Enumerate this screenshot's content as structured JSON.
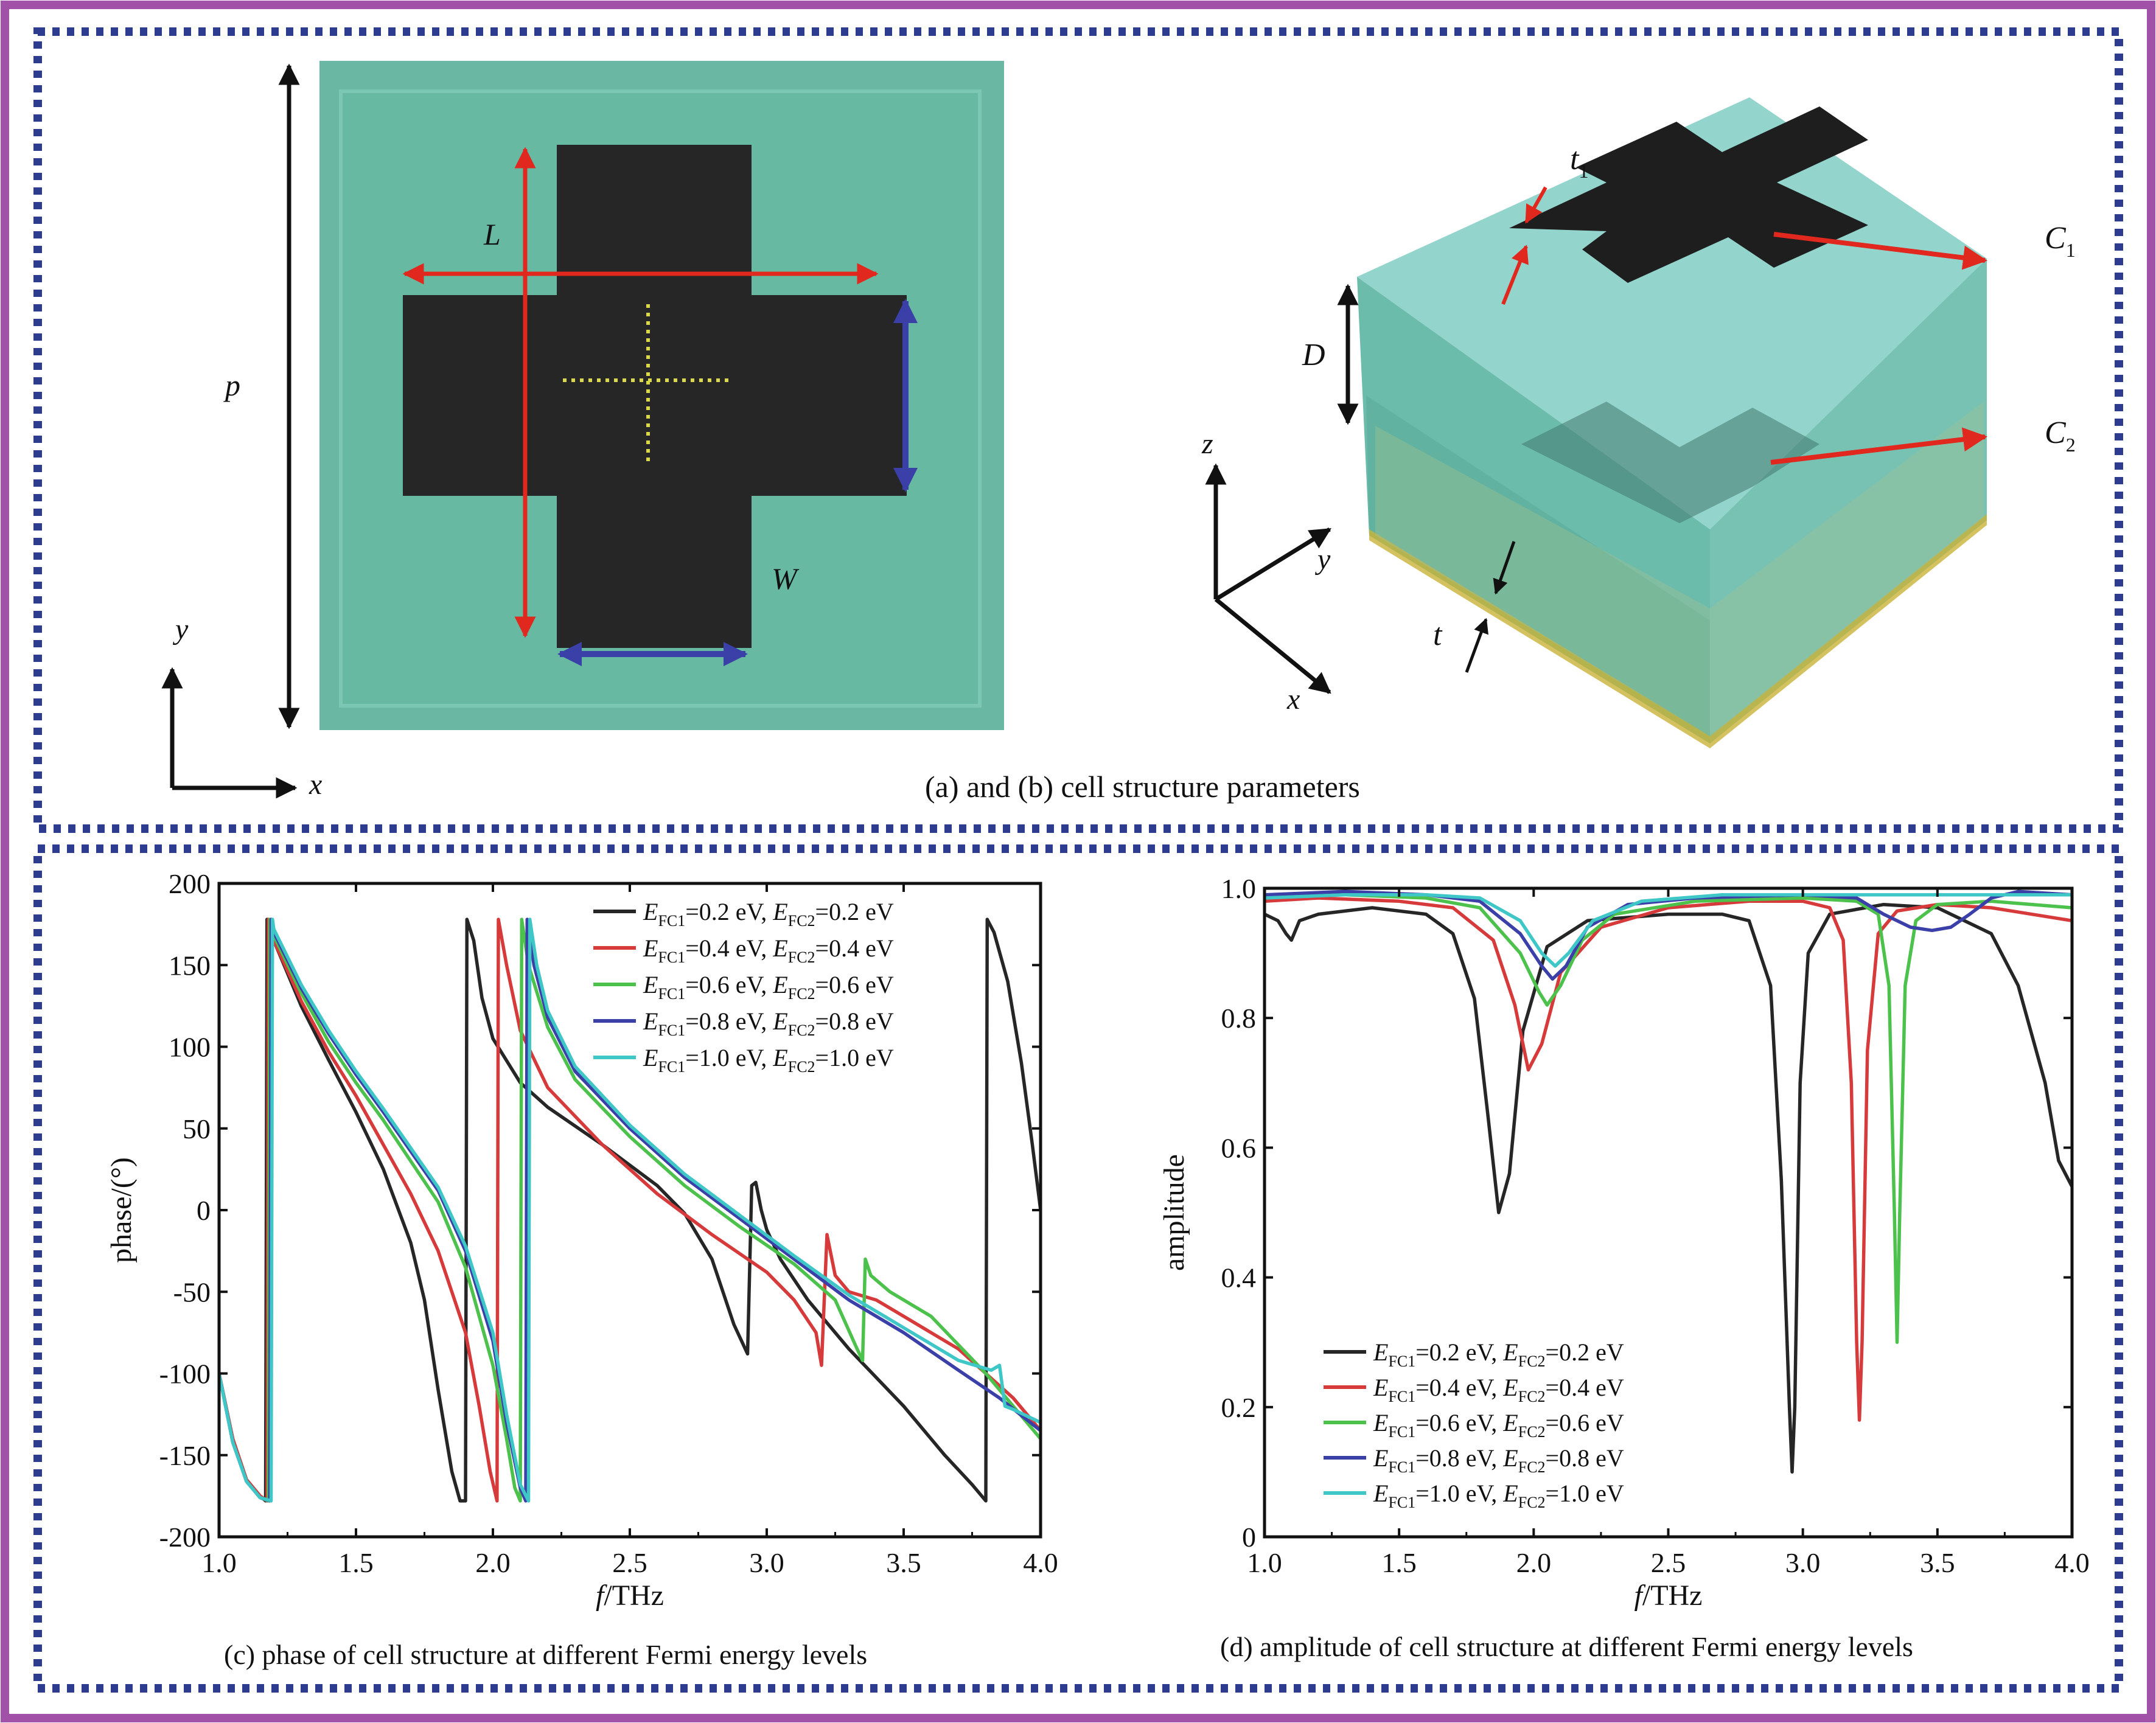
{
  "colors": {
    "outer_frame": "#a251a8",
    "dotted_frame": "#2e3c8f",
    "substrate": "#6ab8a3",
    "metal": "#262626",
    "arrow_red": "#e0281e",
    "arrow_blue": "#3b3fa8",
    "guide_yellow": "#d9d94a"
  },
  "panel_ab": {
    "caption": "(a) and (b) cell structure parameters",
    "a_labels": {
      "L": "L",
      "W": "W",
      "p": "p",
      "x": "x",
      "y": "y"
    },
    "b_labels": {
      "t1": "t",
      "t1_sub": "1",
      "C1": "C",
      "C1_sub": "1",
      "C2": "C",
      "C2_sub": "2",
      "D": "D",
      "t": "t",
      "x": "x",
      "y": "y",
      "z": "z"
    }
  },
  "legend_entries": [
    {
      "e1": "0.2",
      "e2": "0.2"
    },
    {
      "e1": "0.4",
      "e2": "0.4"
    },
    {
      "e1": "0.6",
      "e2": "0.6"
    },
    {
      "e1": "0.8",
      "e2": "0.8"
    },
    {
      "e1": "1.0",
      "e2": "1.0"
    }
  ],
  "legend_format": {
    "E": "E",
    "sub1": "FC1",
    "sub2": "FC2",
    "unit": " eV",
    "eq": "=",
    "sep": ", "
  },
  "chart_data": [
    {
      "id": "c",
      "type": "line",
      "caption": "(c) phase of cell structure at different Fermi energy levels",
      "xlabel_italic": "f",
      "xlabel_rest": "/THz",
      "ylabel": "phase/(°)",
      "xlim": [
        1.0,
        4.0
      ],
      "ylim": [
        -200,
        200
      ],
      "xticks": [
        "1.0",
        "1.5",
        "2.0",
        "2.5",
        "3.0",
        "3.5",
        "4.0"
      ],
      "yticks": [
        "200",
        "150",
        "100",
        "50",
        "0",
        "-50",
        "-100",
        "-150",
        "-200"
      ],
      "legend_placement": "top-right",
      "series": [
        {
          "name": "EFC1=0.2 eV, EFC2=0.2 eV",
          "color": "#262626",
          "x": [
            1.0,
            1.05,
            1.1,
            1.15,
            1.17,
            1.175,
            1.2,
            1.3,
            1.4,
            1.5,
            1.6,
            1.7,
            1.75,
            1.8,
            1.85,
            1.88,
            1.9,
            1.905,
            1.93,
            1.96,
            2.0,
            2.1,
            2.2,
            2.4,
            2.6,
            2.7,
            2.8,
            2.88,
            2.93,
            2.945,
            2.96,
            2.98,
            3.0,
            3.05,
            3.15,
            3.3,
            3.5,
            3.65,
            3.75,
            3.8,
            3.805,
            3.83,
            3.88,
            3.93,
            3.97,
            4.0
          ],
          "y": [
            -100,
            -140,
            -165,
            -175,
            -178,
            178,
            165,
            125,
            92,
            60,
            25,
            -20,
            -55,
            -110,
            -160,
            -178,
            -178,
            178,
            165,
            130,
            105,
            78,
            63,
            40,
            15,
            -2,
            -30,
            -70,
            -88,
            15,
            17,
            0,
            -12,
            -30,
            -55,
            -85,
            -120,
            -150,
            -168,
            -178,
            178,
            170,
            140,
            90,
            40,
            0
          ]
        },
        {
          "name": "EFC1=0.4 eV, EFC2=0.4 eV",
          "color": "#d63a3a",
          "x": [
            1.0,
            1.05,
            1.1,
            1.15,
            1.175,
            1.18,
            1.2,
            1.3,
            1.4,
            1.5,
            1.6,
            1.7,
            1.8,
            1.9,
            1.95,
            1.99,
            2.015,
            2.02,
            2.05,
            2.1,
            2.2,
            2.4,
            2.6,
            2.8,
            3.0,
            3.1,
            3.18,
            3.2,
            3.22,
            3.25,
            3.3,
            3.4,
            3.5,
            3.7,
            3.9,
            4.0
          ],
          "y": [
            -100,
            -140,
            -165,
            -175,
            -178,
            178,
            165,
            128,
            97,
            70,
            40,
            10,
            -25,
            -75,
            -120,
            -160,
            -178,
            178,
            150,
            110,
            75,
            40,
            10,
            -15,
            -38,
            -55,
            -75,
            -95,
            -15,
            -40,
            -50,
            -55,
            -65,
            -85,
            -115,
            -135
          ]
        },
        {
          "name": "EFC1=0.6 eV, EFC2=0.6 eV",
          "color": "#4cc24c",
          "x": [
            1.0,
            1.05,
            1.1,
            1.15,
            1.18,
            1.185,
            1.2,
            1.3,
            1.4,
            1.5,
            1.6,
            1.7,
            1.8,
            1.9,
            2.0,
            2.05,
            2.08,
            2.1,
            2.105,
            2.13,
            2.2,
            2.3,
            2.5,
            2.7,
            2.9,
            3.1,
            3.25,
            3.33,
            3.35,
            3.36,
            3.38,
            3.45,
            3.6,
            3.8,
            4.0
          ],
          "y": [
            -100,
            -142,
            -166,
            -176,
            -178,
            178,
            168,
            133,
            103,
            78,
            55,
            30,
            5,
            -35,
            -95,
            -140,
            -170,
            -178,
            178,
            150,
            112,
            80,
            45,
            15,
            -10,
            -33,
            -55,
            -85,
            -92,
            -30,
            -40,
            -50,
            -65,
            -100,
            -140
          ]
        },
        {
          "name": "EFC1=0.8 eV, EFC2=0.8 eV",
          "color": "#3b3fa8",
          "x": [
            1.0,
            1.05,
            1.1,
            1.15,
            1.185,
            1.19,
            1.2,
            1.3,
            1.4,
            1.5,
            1.6,
            1.7,
            1.8,
            1.9,
            2.0,
            2.05,
            2.1,
            2.12,
            2.125,
            2.15,
            2.2,
            2.3,
            2.5,
            2.7,
            2.9,
            3.1,
            3.3,
            3.5,
            3.7,
            3.85,
            4.0
          ],
          "y": [
            -100,
            -142,
            -166,
            -176,
            -178,
            178,
            170,
            136,
            108,
            83,
            60,
            36,
            12,
            -25,
            -80,
            -130,
            -170,
            -178,
            178,
            150,
            118,
            85,
            50,
            20,
            -5,
            -30,
            -55,
            -75,
            -98,
            -115,
            -135
          ]
        },
        {
          "name": "EFC1=1.0 eV, EFC2=1.0 eV",
          "color": "#3fc7c7",
          "x": [
            1.0,
            1.05,
            1.1,
            1.15,
            1.19,
            1.195,
            1.2,
            1.3,
            1.4,
            1.5,
            1.6,
            1.7,
            1.8,
            1.9,
            2.0,
            2.05,
            2.1,
            2.13,
            2.135,
            2.16,
            2.2,
            2.3,
            2.5,
            2.7,
            2.9,
            3.1,
            3.3,
            3.5,
            3.7,
            3.82,
            3.85,
            3.87,
            3.9,
            4.0
          ],
          "y": [
            -100,
            -142,
            -166,
            -176,
            -178,
            178,
            172,
            138,
            110,
            85,
            62,
            38,
            14,
            -22,
            -75,
            -125,
            -168,
            -178,
            178,
            150,
            122,
            88,
            52,
            22,
            -3,
            -28,
            -52,
            -72,
            -92,
            -98,
            -95,
            -120,
            -122,
            -130
          ]
        }
      ]
    },
    {
      "id": "d",
      "type": "line",
      "caption": "(d) amplitude of cell structure at different Fermi energy levels",
      "xlabel_italic": "f",
      "xlabel_rest": "/THz",
      "ylabel": "amplitude",
      "xlim": [
        1.0,
        4.0
      ],
      "ylim": [
        0,
        1.0
      ],
      "xticks": [
        "1.0",
        "1.5",
        "2.0",
        "2.5",
        "3.0",
        "3.5",
        "4.0"
      ],
      "yticks": [
        "1.0",
        "0.8",
        "0.6",
        "0.4",
        "0.2",
        "0"
      ],
      "legend_placement": "bottom-left",
      "series": [
        {
          "name": "EFC1=0.2 eV, EFC2=0.2 eV",
          "color": "#262626",
          "x": [
            1.0,
            1.05,
            1.08,
            1.1,
            1.13,
            1.2,
            1.4,
            1.6,
            1.7,
            1.78,
            1.83,
            1.87,
            1.91,
            1.96,
            2.05,
            2.2,
            2.5,
            2.7,
            2.8,
            2.88,
            2.92,
            2.95,
            2.96,
            2.97,
            2.99,
            3.02,
            3.1,
            3.3,
            3.5,
            3.7,
            3.8,
            3.9,
            3.95,
            4.0
          ],
          "y": [
            0.96,
            0.95,
            0.93,
            0.92,
            0.95,
            0.96,
            0.97,
            0.96,
            0.93,
            0.83,
            0.65,
            0.5,
            0.56,
            0.78,
            0.91,
            0.95,
            0.96,
            0.96,
            0.95,
            0.85,
            0.55,
            0.2,
            0.1,
            0.2,
            0.7,
            0.9,
            0.96,
            0.975,
            0.97,
            0.93,
            0.85,
            0.7,
            0.58,
            0.54
          ]
        },
        {
          "name": "EFC1=0.4 eV, EFC2=0.4 eV",
          "color": "#d63a3a",
          "x": [
            1.0,
            1.2,
            1.5,
            1.7,
            1.85,
            1.93,
            1.98,
            2.03,
            2.1,
            2.25,
            2.5,
            2.8,
            3.0,
            3.1,
            3.15,
            3.18,
            3.2,
            3.21,
            3.22,
            3.24,
            3.28,
            3.35,
            3.5,
            3.7,
            4.0
          ],
          "y": [
            0.98,
            0.985,
            0.98,
            0.97,
            0.92,
            0.82,
            0.72,
            0.76,
            0.87,
            0.94,
            0.97,
            0.98,
            0.98,
            0.97,
            0.92,
            0.7,
            0.3,
            0.18,
            0.3,
            0.75,
            0.93,
            0.965,
            0.975,
            0.97,
            0.95
          ]
        },
        {
          "name": "EFC1=0.6 eV, EFC2=0.6 eV",
          "color": "#4cc24c",
          "x": [
            1.0,
            1.3,
            1.6,
            1.8,
            1.95,
            2.02,
            2.05,
            2.1,
            2.18,
            2.3,
            2.6,
            3.0,
            3.2,
            3.28,
            3.32,
            3.34,
            3.35,
            3.36,
            3.38,
            3.42,
            3.5,
            3.7,
            4.0
          ],
          "y": [
            0.99,
            0.99,
            0.985,
            0.97,
            0.9,
            0.84,
            0.82,
            0.85,
            0.92,
            0.96,
            0.98,
            0.985,
            0.98,
            0.96,
            0.85,
            0.5,
            0.3,
            0.5,
            0.85,
            0.95,
            0.975,
            0.98,
            0.97
          ]
        },
        {
          "name": "EFC1=0.8 eV, EFC2=0.8 eV",
          "color": "#3b3fa8",
          "x": [
            1.0,
            1.3,
            1.6,
            1.8,
            1.95,
            2.03,
            2.07,
            2.12,
            2.2,
            2.35,
            2.6,
            3.0,
            3.2,
            3.3,
            3.4,
            3.48,
            3.55,
            3.62,
            3.7,
            3.8,
            4.0
          ],
          "y": [
            0.99,
            0.995,
            0.99,
            0.98,
            0.93,
            0.88,
            0.86,
            0.88,
            0.94,
            0.975,
            0.985,
            0.99,
            0.985,
            0.96,
            0.94,
            0.935,
            0.94,
            0.96,
            0.985,
            0.995,
            0.99
          ]
        },
        {
          "name": "EFC1=1.0 eV, EFC2=1.0 eV",
          "color": "#3fc7c7",
          "x": [
            1.0,
            1.3,
            1.6,
            1.8,
            1.95,
            2.03,
            2.08,
            2.13,
            2.22,
            2.4,
            2.7,
            3.0,
            3.3,
            3.6,
            3.8,
            4.0
          ],
          "y": [
            0.985,
            0.99,
            0.99,
            0.985,
            0.95,
            0.9,
            0.88,
            0.9,
            0.95,
            0.98,
            0.99,
            0.99,
            0.99,
            0.99,
            0.99,
            0.99
          ]
        }
      ]
    }
  ]
}
